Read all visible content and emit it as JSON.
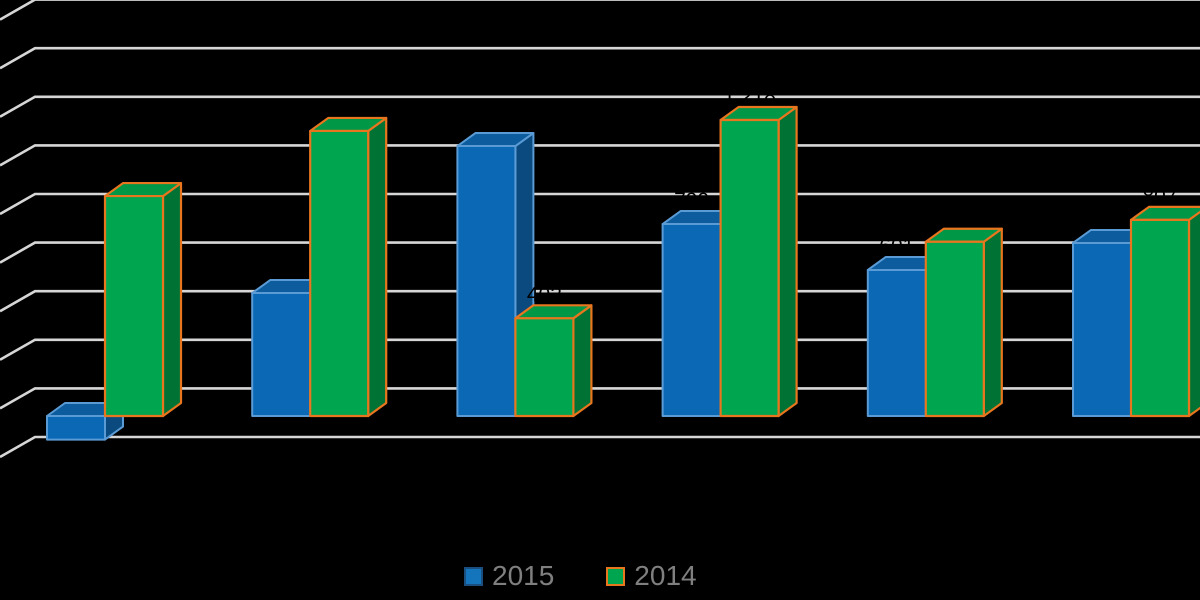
{
  "chart_data": {
    "type": "bar",
    "variant": "3d-clustered-column",
    "title": "",
    "xlabel": "",
    "ylabel": "",
    "background_color": "#000000",
    "grid": true,
    "gridline_color": "#d6d6d6",
    "ylim": [
      0,
      1800
    ],
    "gridline_step": 200,
    "legend_position": "bottom",
    "legend_text_color": "#7f7f7f",
    "data_labels": true,
    "data_label_color": "#000000",
    "categories": [
      "",
      "",
      "",
      "",
      "",
      ""
    ],
    "series": [
      {
        "name": "2015",
        "color": "#0a68b5",
        "side_color": "#0b4a7e",
        "top_color": "#0d5c9e",
        "border_color": "#5b9bd5",
        "legend_swatch_fill": "#1575bc",
        "legend_swatch_border": "#1a4e7e",
        "values": [
          -97,
          506,
          1111,
          790,
          601,
          712
        ]
      },
      {
        "name": "2014",
        "color": "#00a550",
        "side_color": "#007233",
        "top_color": "#009747",
        "border_color": "#e8761e",
        "legend_swatch_fill": "#00a550",
        "legend_swatch_border": "#e8761e",
        "values": [
          905,
          1173,
          402,
          1218,
          717,
          807
        ]
      }
    ]
  }
}
